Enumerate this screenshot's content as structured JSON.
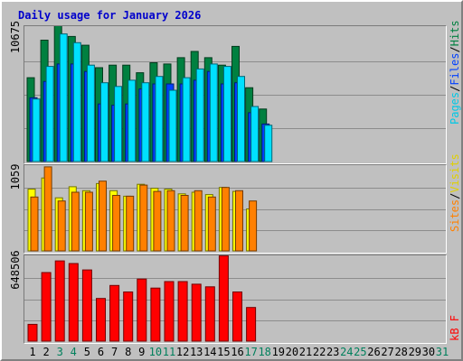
{
  "title": "Daily usage for January 2026",
  "colors": {
    "hits": "#008040",
    "files": "#0040ff",
    "pages": "#00e0ff",
    "visits": "#ffff00",
    "sites": "#ff8000",
    "kbytes": "#ff0000",
    "weekend": "#00805c",
    "weekday": "#000000"
  },
  "chart_data": [
    {
      "type": "bar",
      "title": "",
      "ymax_label": "10675",
      "ylim": [
        0,
        10675
      ],
      "categories": [
        "1",
        "2",
        "3",
        "4",
        "5",
        "6",
        "7",
        "8",
        "9",
        "10",
        "11",
        "12",
        "13",
        "14",
        "15",
        "16",
        "17",
        "18",
        "19",
        "20",
        "21",
        "22",
        "23",
        "24",
        "25",
        "26",
        "27",
        "28",
        "29",
        "30",
        "31"
      ],
      "weekend_days": [
        "3",
        "4",
        "10",
        "11",
        "17",
        "18",
        "24",
        "25",
        "31"
      ],
      "legend": [
        "Pages",
        "Files",
        "Hits"
      ],
      "series": [
        {
          "name": "Hits",
          "values": [
            6700,
            9700,
            11000,
            10000,
            9300,
            7500,
            7700,
            7700,
            7100,
            7900,
            7800,
            8300,
            8800,
            8300,
            7700,
            9200,
            5900,
            4200,
            null,
            null,
            null,
            null,
            null,
            null,
            null,
            null,
            null,
            null,
            null,
            null,
            null
          ]
        },
        {
          "name": "Files",
          "values": [
            5100,
            6400,
            7800,
            7800,
            7200,
            4600,
            4500,
            4600,
            5800,
            6200,
            6200,
            6200,
            6500,
            7200,
            6200,
            6300,
            3900,
            3000,
            null,
            null,
            null,
            null,
            null,
            null,
            null,
            null,
            null,
            null,
            null,
            null,
            null
          ]
        },
        {
          "name": "Pages",
          "values": [
            5000,
            7600,
            10200,
            9500,
            7700,
            6300,
            6000,
            6500,
            6300,
            6800,
            5700,
            6700,
            7400,
            7800,
            7600,
            6800,
            4400,
            2900,
            null,
            null,
            null,
            null,
            null,
            null,
            null,
            null,
            null,
            null,
            null,
            null,
            null
          ]
        }
      ]
    },
    {
      "type": "bar",
      "title": "",
      "ymax_label": "1059",
      "ylim": [
        0,
        1059
      ],
      "categories": [
        "1",
        "2",
        "3",
        "4",
        "5",
        "6",
        "7",
        "8",
        "9",
        "10",
        "11",
        "12",
        "13",
        "14",
        "15",
        "16",
        "17",
        "18",
        "19",
        "20",
        "21",
        "22",
        "23",
        "24",
        "25",
        "26",
        "27",
        "28",
        "29",
        "30",
        "31"
      ],
      "legend": [
        "Sites",
        "Visits"
      ],
      "series": [
        {
          "name": "Visits",
          "values": [
            780,
            920,
            670,
            810,
            760,
            850,
            760,
            690,
            840,
            790,
            780,
            720,
            740,
            710,
            800,
            750,
            530,
            null,
            null,
            null,
            null,
            null,
            null,
            null,
            null,
            null,
            null,
            null,
            null,
            null,
            null
          ]
        },
        {
          "name": "Sites",
          "values": [
            680,
            1060,
            630,
            740,
            740,
            880,
            700,
            690,
            830,
            750,
            760,
            700,
            760,
            680,
            800,
            760,
            630,
            null,
            null,
            null,
            null,
            null,
            null,
            null,
            null,
            null,
            null,
            null,
            null,
            null,
            null
          ]
        }
      ]
    },
    {
      "type": "bar",
      "title": "",
      "ymax_label": "648506",
      "ylim": [
        0,
        648506
      ],
      "categories": [
        "1",
        "2",
        "3",
        "4",
        "5",
        "6",
        "7",
        "8",
        "9",
        "10",
        "11",
        "12",
        "13",
        "14",
        "15",
        "16",
        "17",
        "18",
        "19",
        "20",
        "21",
        "22",
        "23",
        "24",
        "25",
        "26",
        "27",
        "28",
        "29",
        "30",
        "31"
      ],
      "legend": [
        "KBytes"
      ],
      "legend_text": "kB F",
      "series": [
        {
          "name": "KBytes",
          "values": [
            130000,
            530000,
            620000,
            600000,
            550000,
            330000,
            430000,
            380000,
            480000,
            410000,
            460000,
            460000,
            440000,
            420000,
            660000,
            380000,
            260000,
            null,
            null,
            null,
            null,
            null,
            null,
            null,
            null,
            null,
            null,
            null,
            null,
            null,
            null
          ]
        }
      ]
    }
  ]
}
